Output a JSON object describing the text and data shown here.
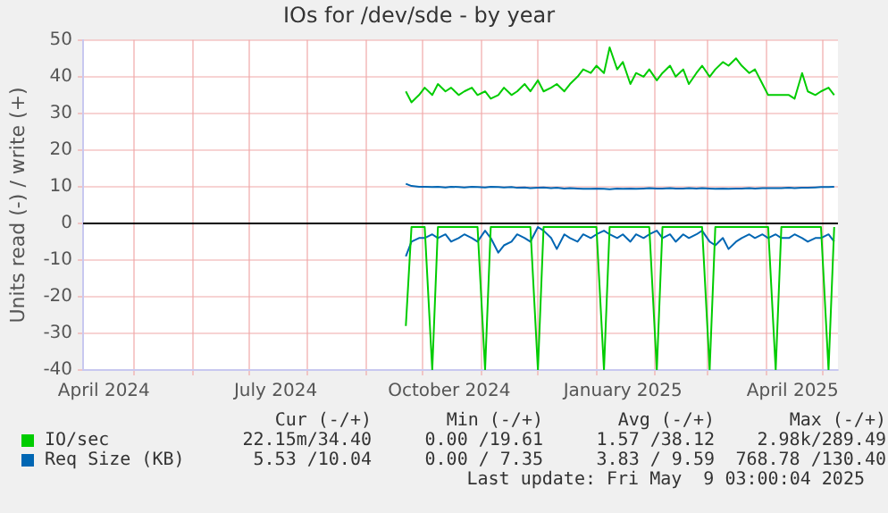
{
  "chart_data": {
    "type": "line",
    "title": "IOs for /dev/sde - by year",
    "ylabel": "Units read (-) / write (+)",
    "x": [
      "2024-09-22",
      "2024-09-25",
      "2024-09-29",
      "2024-10-02",
      "2024-10-06",
      "2024-10-09",
      "2024-10-13",
      "2024-10-16",
      "2024-10-20",
      "2024-10-23",
      "2024-10-27",
      "2024-10-30",
      "2024-11-03",
      "2024-11-06",
      "2024-11-10",
      "2024-11-13",
      "2024-11-17",
      "2024-11-20",
      "2024-11-24",
      "2024-11-27",
      "2024-12-01",
      "2024-12-04",
      "2024-12-08",
      "2024-12-11",
      "2024-12-15",
      "2024-12-18",
      "2024-12-22",
      "2024-12-25",
      "2024-12-29",
      "2025-01-01",
      "2025-01-05",
      "2025-01-08",
      "2025-01-12",
      "2025-01-15",
      "2025-01-19",
      "2025-01-22",
      "2025-01-26",
      "2025-01-29",
      "2025-02-02",
      "2025-02-05",
      "2025-02-09",
      "2025-02-12",
      "2025-02-16",
      "2025-02-19",
      "2025-02-23",
      "2025-02-26",
      "2025-03-02",
      "2025-03-05",
      "2025-03-09",
      "2025-03-12",
      "2025-03-16",
      "2025-03-19",
      "2025-03-23",
      "2025-03-26",
      "2025-03-30",
      "2025-04-02",
      "2025-04-06",
      "2025-04-09",
      "2025-04-13",
      "2025-04-16",
      "2025-04-20",
      "2025-04-23",
      "2025-04-27",
      "2025-04-30",
      "2025-05-04",
      "2025-05-07"
    ],
    "series": [
      {
        "name": "IO/sec",
        "color": "#00cc00",
        "values": [
          36,
          33,
          35,
          37,
          35,
          38,
          36,
          37,
          35,
          36,
          37,
          35,
          36,
          34,
          35,
          37,
          35,
          36,
          38,
          36,
          39,
          36,
          37,
          38,
          36,
          38,
          40,
          42,
          41,
          43,
          41,
          48,
          42,
          44,
          38,
          41,
          40,
          42,
          39,
          41,
          43,
          40,
          42,
          38,
          41,
          43,
          40,
          42,
          44,
          43,
          45,
          43,
          41,
          42,
          38,
          35,
          35,
          35,
          35,
          34,
          41,
          36,
          35,
          36,
          37,
          35
        ]
      },
      {
        "color": "#00cc00",
        "values": [
          -28,
          -1,
          -1,
          -1,
          -40,
          -1,
          -1,
          -1,
          -1,
          -1,
          -1,
          -1,
          -40,
          -1,
          -1,
          -1,
          -1,
          -1,
          -1,
          -1,
          -40,
          -1,
          -1,
          -1,
          -1,
          -1,
          -1,
          -1,
          -1,
          -1,
          -40,
          -1,
          -1,
          -1,
          -1,
          -1,
          -1,
          -1,
          -40,
          -1,
          -1,
          -1,
          -1,
          -1,
          -1,
          -1,
          -40,
          -1,
          -1,
          -1,
          -1,
          -1,
          -1,
          -1,
          -1,
          -1,
          -40,
          -1,
          -1,
          -1,
          -1,
          -1,
          -1,
          -1,
          -40,
          -1
        ]
      },
      {
        "name": "Req Size (KB)",
        "color": "#0066b3",
        "values": [
          10.8,
          10.2,
          10,
          10,
          9.9,
          10,
          9.8,
          10,
          9.9,
          9.8,
          10,
          9.9,
          9.8,
          10,
          9.9,
          9.8,
          9.9,
          9.7,
          9.8,
          9.6,
          9.7,
          9.8,
          9.6,
          9.7,
          9.5,
          9.6,
          9.5,
          9.4,
          9.4,
          9.5,
          9.4,
          9.3,
          9.5,
          9.4,
          9.5,
          9.4,
          9.5,
          9.6,
          9.5,
          9.5,
          9.6,
          9.5,
          9.5,
          9.6,
          9.5,
          9.6,
          9.5,
          9.4,
          9.5,
          9.4,
          9.5,
          9.5,
          9.6,
          9.5,
          9.6,
          9.6,
          9.6,
          9.6,
          9.7,
          9.6,
          9.7,
          9.7,
          9.8,
          9.9,
          9.9,
          10
        ]
      },
      {
        "color": "#0066b3",
        "values": [
          -9,
          -5,
          -4,
          -4,
          -3,
          -4,
          -3,
          -5,
          -4,
          -3,
          -4,
          -5,
          -2,
          -4,
          -8,
          -6,
          -5,
          -3,
          -4,
          -5,
          -1,
          -2,
          -4,
          -7,
          -3,
          -4,
          -5,
          -3,
          -4,
          -3,
          -2,
          -3,
          -4,
          -3,
          -5,
          -3,
          -4,
          -3,
          -2,
          -4,
          -3,
          -5,
          -3,
          -4,
          -3,
          -2,
          -5,
          -6,
          -4,
          -7,
          -5,
          -4,
          -3,
          -4,
          -3,
          -4,
          -3,
          -4,
          -4,
          -3,
          -4,
          -5,
          -4,
          -4,
          -3,
          -5
        ]
      }
    ],
    "xlim": [
      "2024-04-04",
      "2025-05-09"
    ],
    "xticks": [
      {
        "value": "2024-04-15",
        "label": "April 2024"
      },
      {
        "value": "2024-05-01",
        "label": null
      },
      {
        "value": "2024-06-01",
        "label": null
      },
      {
        "value": "2024-07-01",
        "label": null
      },
      {
        "value": "2024-07-15",
        "label": "July 2024"
      },
      {
        "value": "2024-08-01",
        "label": null
      },
      {
        "value": "2024-09-01",
        "label": null
      },
      {
        "value": "2024-10-01",
        "label": null
      },
      {
        "value": "2024-10-15",
        "label": "October 2024"
      },
      {
        "value": "2024-11-01",
        "label": null
      },
      {
        "value": "2024-12-01",
        "label": null
      },
      {
        "value": "2025-01-01",
        "label": null
      },
      {
        "value": "2025-01-15",
        "label": "January 2025"
      },
      {
        "value": "2025-02-01",
        "label": null
      },
      {
        "value": "2025-03-01",
        "label": null
      },
      {
        "value": "2025-04-01",
        "label": null
      },
      {
        "value": "2025-04-15",
        "label": "April 2025"
      },
      {
        "value": "2025-05-01",
        "label": null
      }
    ],
    "ylim": [
      -40,
      50
    ],
    "yticks": [
      -40,
      -30,
      -20,
      -10,
      0,
      10,
      20,
      30,
      40,
      50
    ],
    "grid": true,
    "legend": "bottom",
    "marker": "none",
    "line_style": "solid",
    "ref_lines": [
      {
        "axis": "y",
        "value": 0,
        "color": "#000000"
      }
    ],
    "annotations": [
      "Cur (-/+)",
      "Min (-/+)",
      "Avg (-/+)",
      "Max (-/+)",
      "22.15m/34.40",
      "0.00 /19.61",
      "1.57 /38.12",
      "2.98k/289.49",
      "5.53 /10.04",
      "0.00 / 7.35",
      "3.83 / 9.59",
      "768.78 /130.40",
      "Last update: Fri May  9 03:00:04 2025"
    ]
  }
}
